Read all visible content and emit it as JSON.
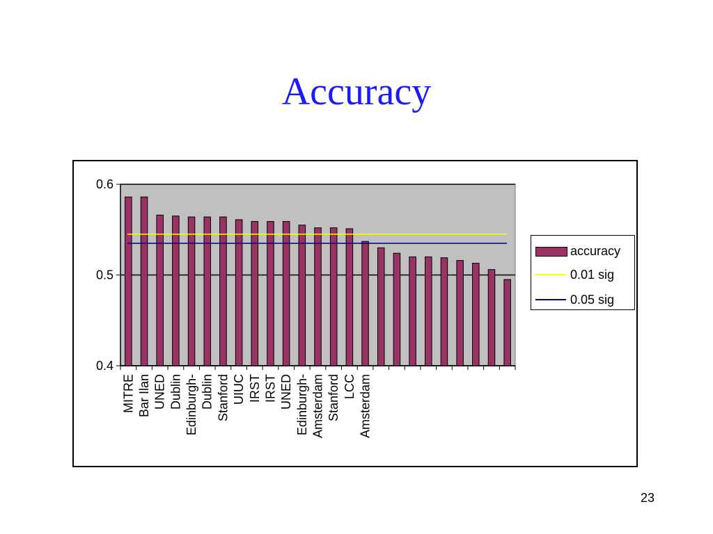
{
  "slide": {
    "title": "Accuracy",
    "page_number": "23"
  },
  "colors": {
    "title": "#1a1aff",
    "bar_fill": "#993366",
    "plot_background": "#c0c0c0",
    "sig01_line": "#ffff00",
    "sig05_line": "#000080"
  },
  "chart_data": {
    "type": "bar",
    "title": "",
    "xlabel": "",
    "ylabel": "",
    "ylim": [
      0.4,
      0.6
    ],
    "yticks": [
      "0.4",
      "0.5",
      "0.6"
    ],
    "grid": "major horizontal",
    "legend_position": "right",
    "categories": [
      "MITRE",
      "Bar Ilan",
      "UNED",
      "Dublin",
      "Edinburgh-",
      "Dublin",
      "Stanford",
      "UIUC",
      "IRST",
      "IRST",
      "UNED",
      "Edinburgh-",
      "Amsterdam",
      "Stanford",
      "LCC",
      "Amsterdam",
      "",
      "",
      "",
      "",
      "",
      "",
      "",
      "",
      ""
    ],
    "series": [
      {
        "name": "accuracy",
        "type": "bar",
        "values": [
          0.586,
          0.586,
          0.566,
          0.565,
          0.564,
          0.564,
          0.564,
          0.561,
          0.559,
          0.559,
          0.559,
          0.555,
          0.552,
          0.552,
          0.551,
          0.537,
          0.53,
          0.524,
          0.52,
          0.52,
          0.519,
          0.516,
          0.513,
          0.506,
          0.495
        ]
      },
      {
        "name": "0.01 sig",
        "type": "line",
        "value": 0.545
      },
      {
        "name": "0.05 sig",
        "type": "line",
        "value": 0.535
      }
    ]
  }
}
